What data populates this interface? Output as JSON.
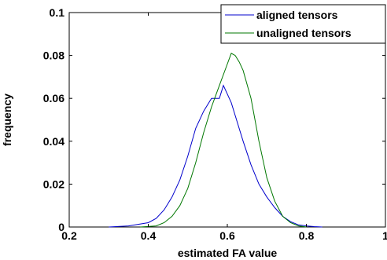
{
  "chart_data": {
    "type": "line",
    "xlabel": "estimated FA value",
    "ylabel": "frequency",
    "xlim": [
      0.2,
      1
    ],
    "ylim": [
      0,
      0.1
    ],
    "xticks": [
      0.2,
      0.4,
      0.6,
      0.8,
      1
    ],
    "xtick_labels": [
      "0.2",
      "0.4",
      "0.6",
      "0.8",
      "1"
    ],
    "yticks": [
      0,
      0.02,
      0.04,
      0.06,
      0.08,
      0.1
    ],
    "ytick_labels": [
      "0",
      "0.02",
      "0.04",
      "0.06",
      "0.08",
      "0.1"
    ],
    "grid": false,
    "legend_position": "top-right",
    "series": [
      {
        "name": "aligned tensors",
        "color": "#0000cc",
        "x": [
          0.3,
          0.35,
          0.4,
          0.42,
          0.44,
          0.46,
          0.48,
          0.5,
          0.52,
          0.54,
          0.56,
          0.57,
          0.58,
          0.59,
          0.6,
          0.61,
          0.62,
          0.64,
          0.66,
          0.68,
          0.7,
          0.72,
          0.74,
          0.76,
          0.78,
          0.8,
          0.82,
          0.84
        ],
        "y": [
          0.0,
          0.0005,
          0.002,
          0.004,
          0.008,
          0.014,
          0.022,
          0.033,
          0.046,
          0.054,
          0.06,
          0.06,
          0.06,
          0.066,
          0.062,
          0.058,
          0.052,
          0.04,
          0.029,
          0.02,
          0.014,
          0.009,
          0.005,
          0.0025,
          0.001,
          0.0005,
          0.0002,
          0.0
        ]
      },
      {
        "name": "unaligned tensors",
        "color": "#007700",
        "x": [
          0.38,
          0.42,
          0.44,
          0.46,
          0.48,
          0.5,
          0.52,
          0.54,
          0.56,
          0.58,
          0.6,
          0.61,
          0.62,
          0.63,
          0.64,
          0.66,
          0.68,
          0.7,
          0.72,
          0.74,
          0.76,
          0.78,
          0.8
        ],
        "y": [
          0.0,
          0.0005,
          0.002,
          0.005,
          0.01,
          0.018,
          0.03,
          0.044,
          0.056,
          0.066,
          0.076,
          0.081,
          0.08,
          0.077,
          0.073,
          0.06,
          0.04,
          0.023,
          0.012,
          0.005,
          0.002,
          0.0005,
          0.0
        ]
      }
    ]
  }
}
